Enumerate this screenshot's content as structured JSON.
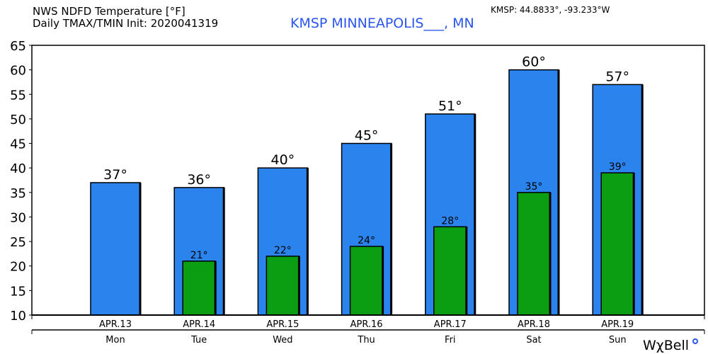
{
  "header": {
    "title_line1": "NWS NDFD Temperature [°F]",
    "title_line2": "Daily TMAX/TMIN Init: 2020041319",
    "station": "KMSP MINNEAPOLIS___, MN",
    "coords": "KMSP: 44.8833°, -93.233°W",
    "logo": "WχBell"
  },
  "colors": {
    "tmax": "#2b84ee",
    "tmin": "#0c9e12",
    "station": "#2a55ee"
  },
  "chart_data": {
    "type": "bar",
    "title": "NWS NDFD Temperature [°F]",
    "categories": [
      "APR.13",
      "APR.14",
      "APR.15",
      "APR.16",
      "APR.17",
      "APR.18",
      "APR.19"
    ],
    "days": [
      "Mon",
      "Tue",
      "Wed",
      "Thu",
      "Fri",
      "Sat",
      "Sun"
    ],
    "series": [
      {
        "name": "TMAX",
        "values": [
          37,
          36,
          40,
          45,
          51,
          60,
          57
        ],
        "labels": [
          "37°",
          "36°",
          "40°",
          "45°",
          "51°",
          "60°",
          "57°"
        ]
      },
      {
        "name": "TMIN",
        "values": [
          null,
          21,
          22,
          24,
          28,
          35,
          39
        ],
        "labels": [
          "",
          "21°",
          "22°",
          "24°",
          "28°",
          "35°",
          "39°"
        ]
      }
    ],
    "ylim": [
      10,
      65
    ],
    "yticks": [
      10,
      15,
      20,
      25,
      30,
      35,
      40,
      45,
      50,
      55,
      60,
      65
    ],
    "grid": false
  }
}
